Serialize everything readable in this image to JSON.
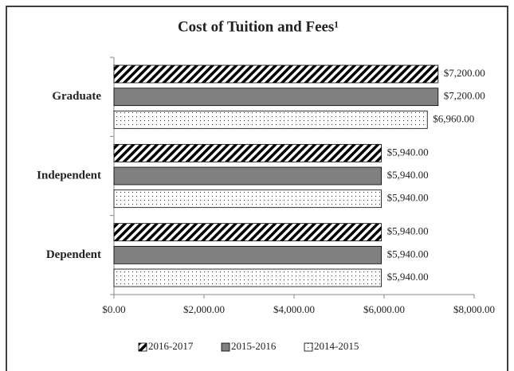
{
  "chart_data": {
    "type": "hbar",
    "title": "Cost of Tuition and Fees¹",
    "categories": [
      "Graduate",
      "Independent",
      "Dependent"
    ],
    "series": [
      {
        "name": "2016-2017",
        "color": "#000000",
        "pattern": "hatch",
        "values": [
          7200,
          5940,
          5940
        ],
        "value_labels": [
          "$7,200.00",
          "$5,940.00",
          "$5,940.00"
        ]
      },
      {
        "name": "2015-2016",
        "color": "#808080",
        "pattern": "solid",
        "values": [
          7200,
          5940,
          5940
        ],
        "value_labels": [
          "$7,200.00",
          "$5,940.00",
          "$5,940.00"
        ]
      },
      {
        "name": "2014-2015",
        "color": "#ffffff",
        "pattern": "dots",
        "values": [
          6960,
          5940,
          5940
        ],
        "value_labels": [
          "$6,960.00",
          "$5,940.00",
          "$5,940.00"
        ]
      }
    ],
    "xlim": [
      0,
      8000
    ],
    "xticks": [
      {
        "value": 0,
        "label": "$0.00"
      },
      {
        "value": 2000,
        "label": "$2,000.00"
      },
      {
        "value": 4000,
        "label": "$4,000.00"
      },
      {
        "value": 6000,
        "label": "$6,000.00"
      },
      {
        "value": 8000,
        "label": "$8,000.00"
      }
    ],
    "legend": "bottom"
  }
}
